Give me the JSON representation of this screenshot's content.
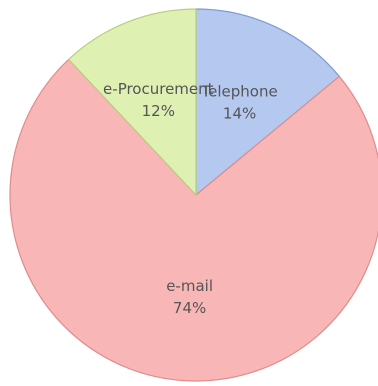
{
  "chart_data": {
    "type": "pie",
    "title": "",
    "slices": [
      {
        "label": "Telephone",
        "value": 14,
        "value_label": "14%",
        "color": "#b4c8f0",
        "edge_color": "#7f9bd6"
      },
      {
        "label": "e-mail",
        "value": 74,
        "value_label": "74%",
        "color": "#f9b6b6",
        "edge_color": "#e08c8c"
      },
      {
        "label": "e-Procurement",
        "value": 12,
        "value_label": "12%",
        "color": "#dff0b3",
        "edge_color": "#b8cf80"
      }
    ],
    "start_angle_deg": 90,
    "direction": "clockwise",
    "legend": "none"
  }
}
